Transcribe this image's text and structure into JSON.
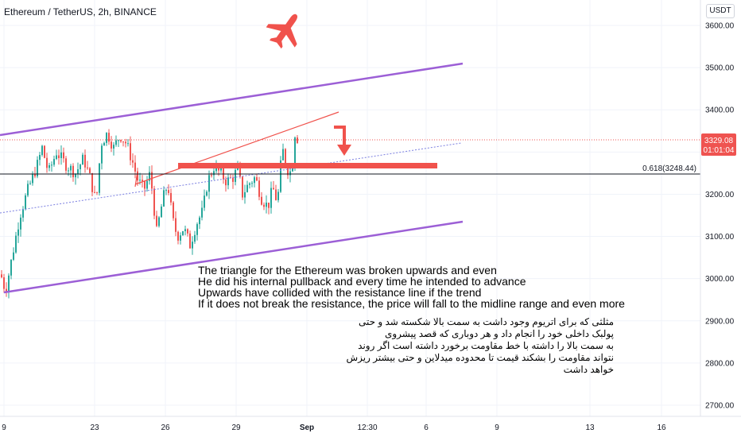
{
  "header": {
    "title": "Ethereum / TetherUS, 2h, BINANCE",
    "currency": "USDT"
  },
  "chart_data": {
    "type": "candlestick",
    "symbol": "Ethereum / TetherUS",
    "interval": "2h",
    "exchange": "BINANCE",
    "y_ticks": [
      2700,
      2800,
      2900,
      3000,
      3100,
      3200,
      3300,
      3400,
      3500,
      3600
    ],
    "y_tick_labels": [
      "2700.00",
      "2800.00",
      "2900.00",
      "3000.00",
      "3100.00",
      "3200.00",
      "3300.00",
      "3400.00",
      "3500.00",
      "3600.00"
    ],
    "ylim": [
      2660,
      3645
    ],
    "x_tick_labels": [
      "9",
      "23",
      "26",
      "29",
      "Sep",
      "12:30",
      "6",
      "9",
      "13",
      "16"
    ],
    "last_price": {
      "value": "3329.08",
      "countdown": "01:01:04"
    },
    "fib_level": {
      "label": "0.618(3248.44)",
      "value": 3248.44
    },
    "colors": {
      "up": "#26a69a",
      "down": "#ef5350",
      "channel": "#9c5fd6",
      "resistance": "#f0524c",
      "fib": "#131722",
      "trend_dotted": "#7b7fe0"
    }
  },
  "annotations": {
    "english": [
      "The triangle for the Ethereum was broken upwards and even",
      "He did his internal pullback and every time he intended to advance",
      "Upwards have collided with the resistance line if the trend",
      "If it does not break the resistance, the price will fall to the midline range and even more"
    ],
    "persian": [
      "مثلثی که برای اتریوم وجود داشت به سمت بالا شکسته شد و حتی",
      "پولبک داخلی خود را انجام داد و هر دوباری که قصد پیشروی",
      "به سمت بالا را داشته با خط مقاومت برخورد داشته است اگر روند",
      "نتواند مقاومت را بشکند قیمت تا محدوده میدلاین و حتی بیشتر ریزش",
      "خواهد داشت"
    ]
  },
  "icons": {
    "plane": "airplane-icon",
    "arrow": "down-arrow-icon"
  }
}
